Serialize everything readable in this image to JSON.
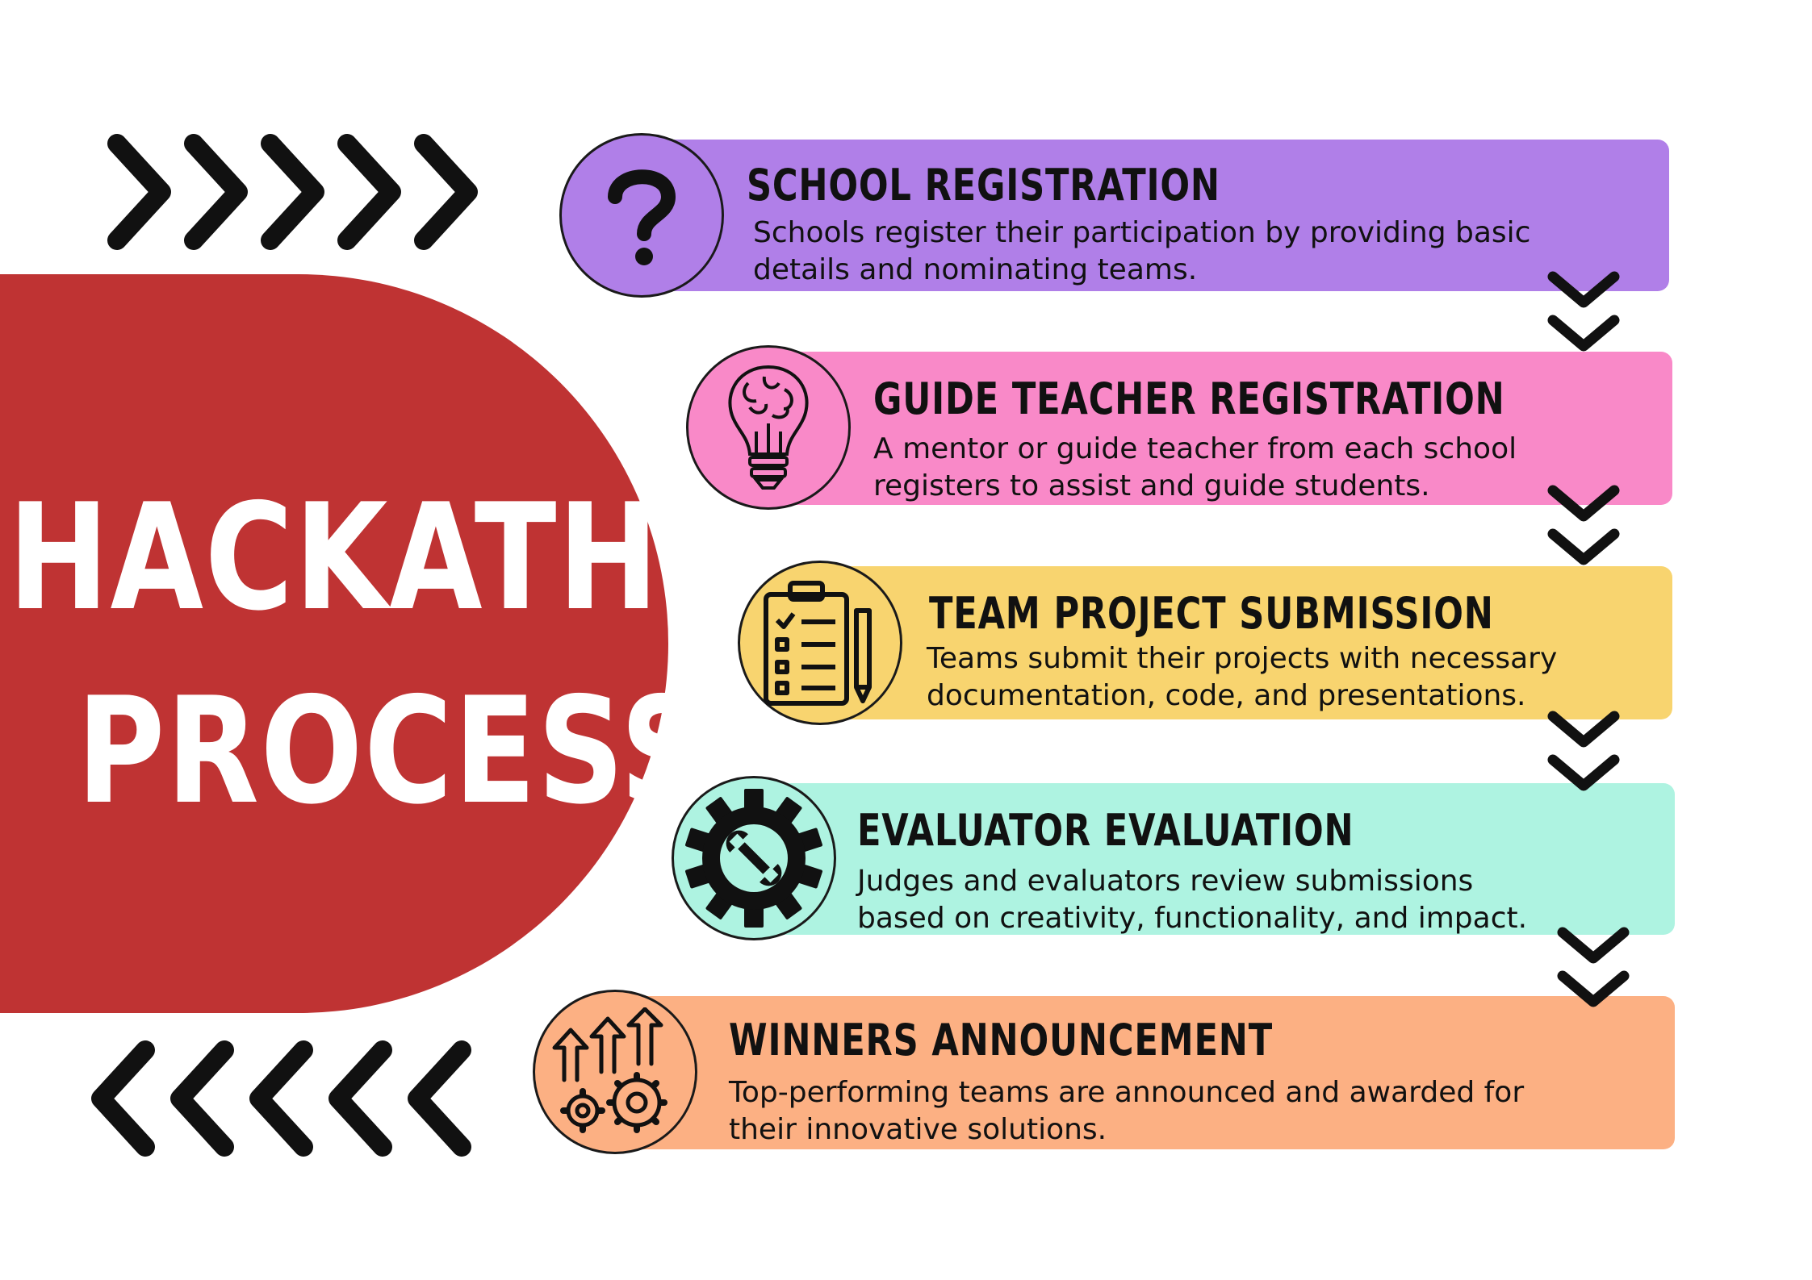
{
  "title": {
    "line1": "HACKATHON",
    "line2": "PROCESS"
  },
  "colors": {
    "title_bg": "#bf3333",
    "step1": "#b07fe8",
    "step2": "#f989c8",
    "step3": "#f8d46f",
    "step4": "#aef3e1",
    "step5": "#fcb083"
  },
  "steps": [
    {
      "title": "SCHOOL REGISTRATION",
      "desc_line1": "Schools register their participation by providing basic",
      "desc_line2": "details and nominating teams.",
      "icon": "question-mark-icon"
    },
    {
      "title": "GUIDE TEACHER REGISTRATION",
      "desc_line1": "A mentor or guide teacher from each school",
      "desc_line2": "registers to assist and guide students.",
      "icon": "brain-bulb-icon"
    },
    {
      "title": "TEAM PROJECT SUBMISSION",
      "desc_line1": "Teams submit their projects with necessary",
      "desc_line2": "documentation, code, and presentations.",
      "icon": "clipboard-checklist-icon"
    },
    {
      "title": "EVALUATOR EVALUATION",
      "desc_line1": "Judges and evaluators review submissions",
      "desc_line2": "based on creativity, functionality, and impact.",
      "icon": "gear-wrench-icon"
    },
    {
      "title": "WINNERS ANNOUNCEMENT",
      "desc_line1": "Top-performing teams are announced and awarded for",
      "desc_line2": "their innovative solutions.",
      "icon": "growth-gears-icon"
    }
  ]
}
